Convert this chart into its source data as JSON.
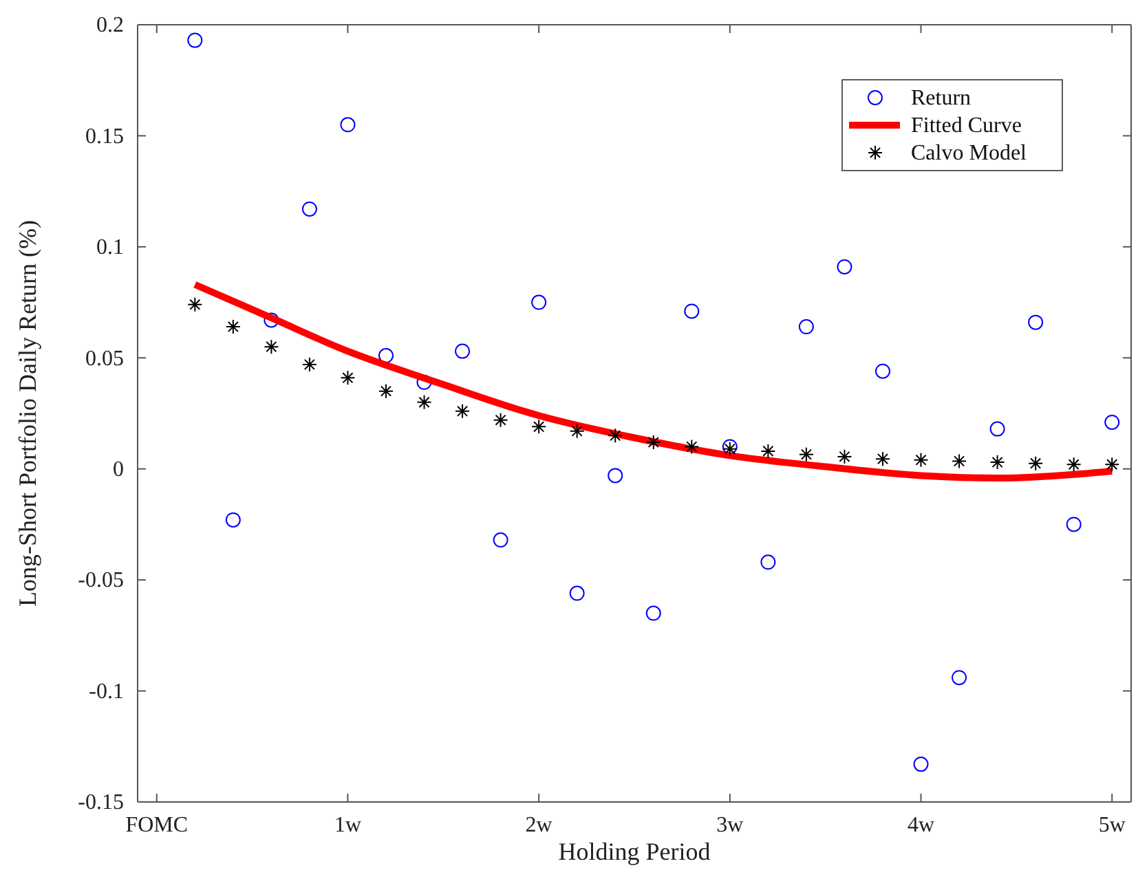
{
  "chart_data": {
    "type": "scatter",
    "xlabel": "Holding Period",
    "ylabel": "Long-Short Portfolio Daily Return (%)",
    "xlim": [
      -0.1,
      5.1
    ],
    "ylim": [
      -0.15,
      0.2
    ],
    "xticks": [
      {
        "value": 0,
        "label": "FOMC"
      },
      {
        "value": 1,
        "label": "1w"
      },
      {
        "value": 2,
        "label": "2w"
      },
      {
        "value": 3,
        "label": "3w"
      },
      {
        "value": 4,
        "label": "4w"
      },
      {
        "value": 5,
        "label": "5w"
      }
    ],
    "yticks": [
      -0.15,
      -0.1,
      -0.05,
      0,
      0.05,
      0.1,
      0.15,
      0.2
    ],
    "grid": false,
    "legend": "top right",
    "series": [
      {
        "name": "Return",
        "marker": "circle",
        "color": "#0000ff",
        "x": [
          0.2,
          0.4,
          0.6,
          0.8,
          1.0,
          1.2,
          1.4,
          1.6,
          1.8,
          2.0,
          2.2,
          2.4,
          2.6,
          2.8,
          3.0,
          3.2,
          3.4,
          3.6,
          3.8,
          4.0,
          4.2,
          4.4,
          4.6,
          4.8,
          5.0
        ],
        "values": [
          0.193,
          -0.023,
          0.067,
          0.117,
          0.155,
          0.051,
          0.039,
          0.053,
          -0.032,
          0.075,
          -0.056,
          -0.003,
          -0.065,
          0.071,
          0.01,
          -0.042,
          0.064,
          0.091,
          0.044,
          -0.133,
          -0.094,
          0.018,
          0.066,
          -0.025,
          0.021
        ]
      },
      {
        "name": "Fitted Curve",
        "type": "line",
        "marker": "none",
        "line_style": "solid",
        "color": "#ff0000",
        "x": [
          0.2,
          0.6,
          1.0,
          1.5,
          2.0,
          2.5,
          3.0,
          3.5,
          4.0,
          4.5,
          5.0
        ],
        "values": [
          0.083,
          0.068,
          0.053,
          0.038,
          0.024,
          0.014,
          0.006,
          0.001,
          -0.003,
          -0.004,
          -0.001
        ]
      },
      {
        "name": "Calvo Model",
        "marker": "cross",
        "color": "#000000",
        "x": [
          0.2,
          0.4,
          0.6,
          0.8,
          1.0,
          1.2,
          1.4,
          1.6,
          1.8,
          2.0,
          2.2,
          2.4,
          2.6,
          2.8,
          3.0,
          3.2,
          3.4,
          3.6,
          3.8,
          4.0,
          4.2,
          4.4,
          4.6,
          4.8,
          5.0
        ],
        "values": [
          0.074,
          0.064,
          0.055,
          0.047,
          0.041,
          0.035,
          0.03,
          0.026,
          0.022,
          0.019,
          0.017,
          0.015,
          0.012,
          0.01,
          0.009,
          0.008,
          0.0065,
          0.0055,
          0.0045,
          0.004,
          0.0035,
          0.003,
          0.0025,
          0.002,
          0.002
        ]
      }
    ]
  }
}
